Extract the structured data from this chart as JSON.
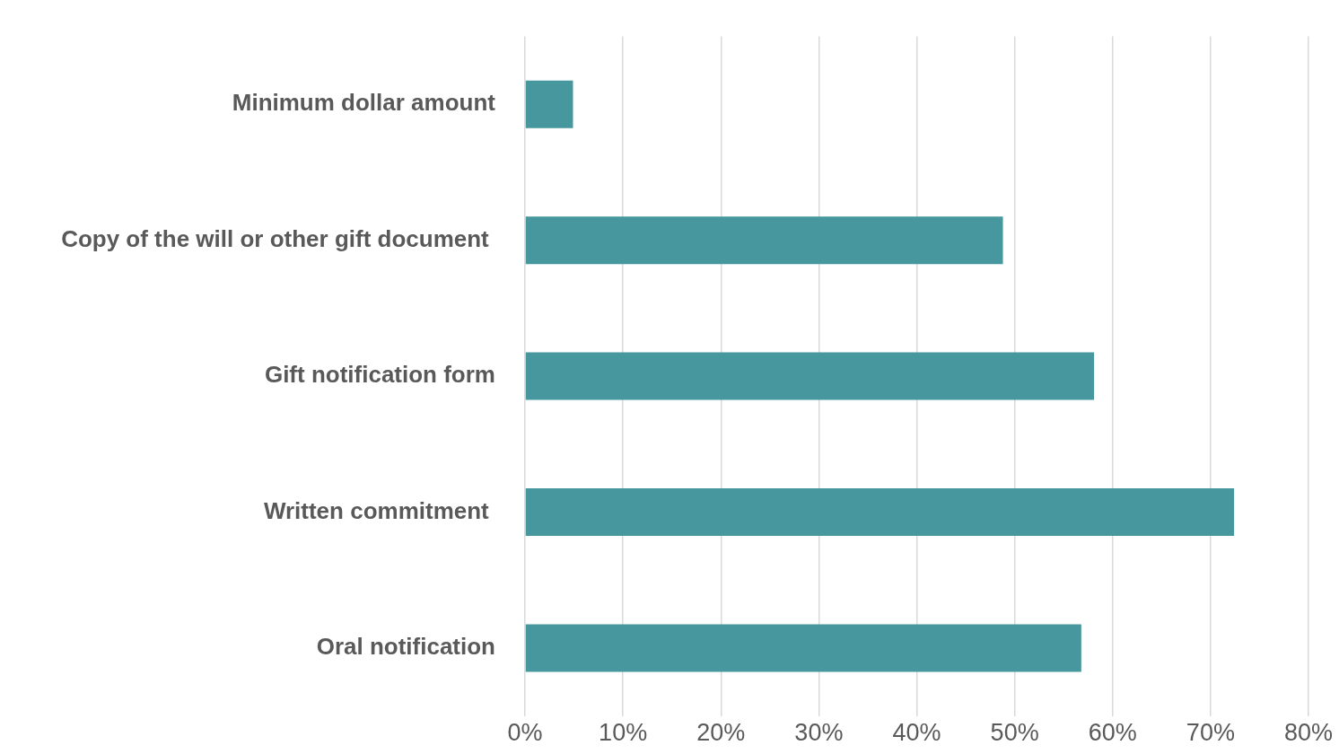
{
  "chart_data": {
    "type": "bar",
    "orientation": "horizontal",
    "categories": [
      "Minimum dollar amount",
      "Copy of the will or other gift document ",
      "Gift notification form",
      "Written commitment ",
      "Oral notification"
    ],
    "values": [
      4.9,
      48.8,
      58.1,
      72.4,
      56.8
    ],
    "color": "#46979e",
    "xlim": [
      0,
      80
    ],
    "xticks": [
      {
        "value": 0,
        "label": "0%"
      },
      {
        "value": 10,
        "label": "10%"
      },
      {
        "value": 20,
        "label": "20%"
      },
      {
        "value": 30,
        "label": "30%"
      },
      {
        "value": 40,
        "label": "40%"
      },
      {
        "value": 50,
        "label": "50%"
      },
      {
        "value": 60,
        "label": "60%"
      },
      {
        "value": 70,
        "label": "70%"
      },
      {
        "value": 80,
        "label": "80%"
      }
    ],
    "grid": "x",
    "legend": false
  }
}
